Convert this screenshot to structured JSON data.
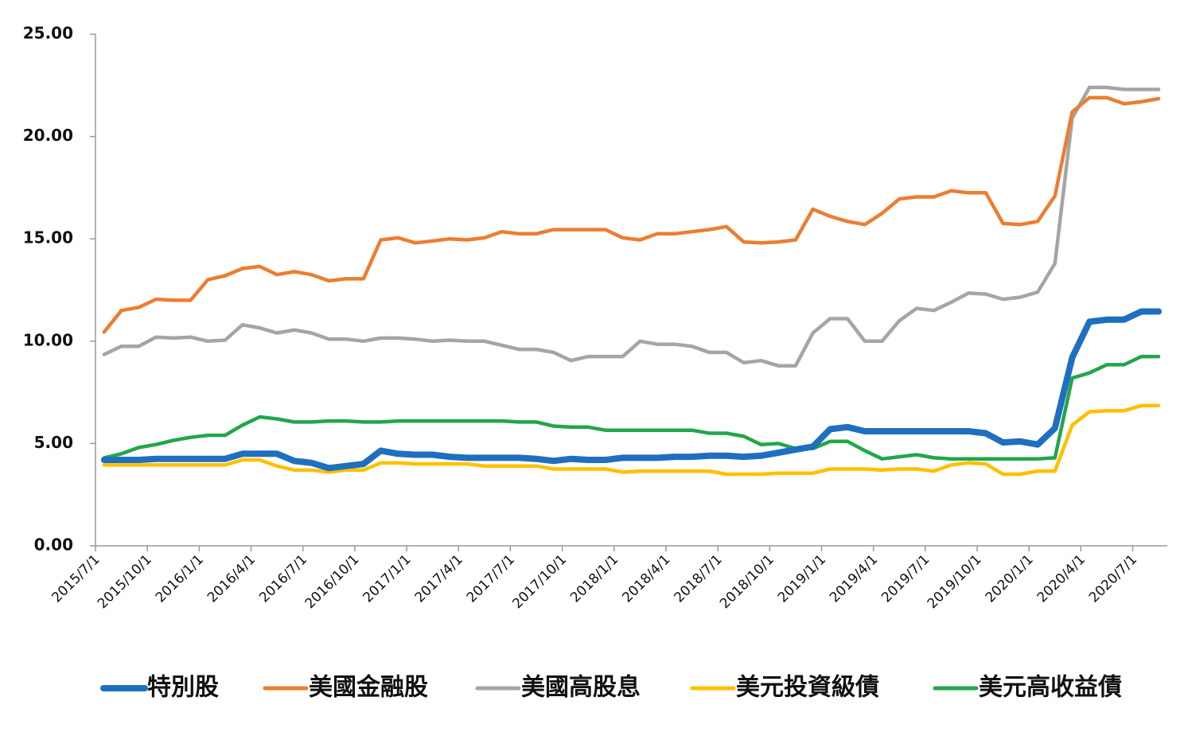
{
  "chart_data": {
    "type": "line",
    "categories": [
      "2015/7/1",
      null,
      null,
      "2015/10/1",
      null,
      null,
      "2016/1/1",
      null,
      null,
      "2016/4/1",
      null,
      null,
      "2016/7/1",
      null,
      null,
      "2016/10/1",
      null,
      null,
      "2017/1/1",
      null,
      null,
      "2017/4/1",
      null,
      null,
      "2017/7/1",
      null,
      null,
      "2017/10/1",
      null,
      null,
      "2018/1/1",
      null,
      null,
      "2018/4/1",
      null,
      null,
      "2018/7/1",
      null,
      null,
      "2018/10/1",
      null,
      null,
      "2019/1/1",
      null,
      null,
      "2019/4/1",
      null,
      null,
      "2019/7/1",
      null,
      null,
      "2019/10/1",
      null,
      null,
      "2020/1/1",
      null,
      null,
      "2020/4/1",
      null,
      null,
      "2020/7/1",
      null
    ],
    "series": [
      {
        "name": "特別股",
        "color": "#1f6fc0",
        "values": [
          4.2,
          4.2,
          4.2,
          4.25,
          4.25,
          4.25,
          4.25,
          4.25,
          4.5,
          4.5,
          4.5,
          4.15,
          4.05,
          3.8,
          3.9,
          4.0,
          4.65,
          4.5,
          4.45,
          4.45,
          4.35,
          4.3,
          4.3,
          4.3,
          4.3,
          4.25,
          4.15,
          4.25,
          4.2,
          4.2,
          4.3,
          4.3,
          4.3,
          4.35,
          4.35,
          4.4,
          4.4,
          4.35,
          4.4,
          4.55,
          4.7,
          4.85,
          5.7,
          5.8,
          5.6,
          5.6,
          5.6,
          5.6,
          5.6,
          5.6,
          5.6,
          5.5,
          5.05,
          5.1,
          4.95,
          5.75,
          9.2,
          10.95,
          11.05,
          11.05,
          11.45,
          11.45
        ]
      },
      {
        "name": "美國金融股",
        "color": "#ed7d31",
        "values": [
          10.45,
          11.5,
          11.65,
          12.05,
          12.0,
          12.0,
          13.0,
          13.2,
          13.55,
          13.65,
          13.25,
          13.4,
          13.25,
          12.95,
          13.05,
          13.05,
          14.95,
          15.05,
          14.8,
          14.9,
          15.0,
          14.95,
          15.05,
          15.35,
          15.25,
          15.25,
          15.45,
          15.45,
          15.45,
          15.45,
          15.05,
          14.95,
          15.25,
          15.25,
          15.35,
          15.45,
          15.6,
          14.85,
          14.8,
          14.85,
          14.95,
          16.45,
          16.1,
          15.85,
          15.7,
          16.25,
          16.95,
          17.05,
          17.05,
          17.35,
          17.25,
          17.25,
          15.75,
          15.7,
          15.85,
          17.1,
          21.2,
          21.9,
          21.9,
          21.6,
          21.7,
          21.85
        ]
      },
      {
        "name": "美國高股息",
        "color": "#a5a5a5",
        "values": [
          9.35,
          9.75,
          9.75,
          10.2,
          10.15,
          10.2,
          10.0,
          10.05,
          10.8,
          10.65,
          10.4,
          10.55,
          10.4,
          10.1,
          10.1,
          10.0,
          10.15,
          10.15,
          10.1,
          10.0,
          10.05,
          10.0,
          10.0,
          9.8,
          9.6,
          9.6,
          9.45,
          9.05,
          9.25,
          9.25,
          9.25,
          10.0,
          9.85,
          9.85,
          9.75,
          9.45,
          9.45,
          8.95,
          9.05,
          8.8,
          8.8,
          10.4,
          11.1,
          11.1,
          10.0,
          10.0,
          11.0,
          11.6,
          11.5,
          11.9,
          12.35,
          12.3,
          12.05,
          12.15,
          12.4,
          13.8,
          20.9,
          22.4,
          22.4,
          22.3,
          22.3,
          22.3
        ]
      },
      {
        "name": "美元投資級債",
        "color": "#ffc000",
        "values": [
          3.95,
          3.95,
          3.95,
          3.95,
          3.95,
          3.95,
          3.95,
          3.95,
          4.2,
          4.2,
          3.9,
          3.7,
          3.7,
          3.6,
          3.7,
          3.7,
          4.05,
          4.05,
          4.0,
          4.0,
          4.0,
          4.0,
          3.9,
          3.9,
          3.9,
          3.9,
          3.75,
          3.75,
          3.75,
          3.75,
          3.6,
          3.65,
          3.65,
          3.65,
          3.65,
          3.65,
          3.5,
          3.5,
          3.5,
          3.55,
          3.55,
          3.55,
          3.75,
          3.75,
          3.75,
          3.7,
          3.75,
          3.75,
          3.65,
          3.95,
          4.05,
          4.0,
          3.5,
          3.5,
          3.65,
          3.65,
          5.9,
          6.55,
          6.6,
          6.6,
          6.85,
          6.85
        ]
      },
      {
        "name": "美元高收益債",
        "color": "#22a64a",
        "values": [
          4.3,
          4.5,
          4.8,
          4.95,
          5.15,
          5.3,
          5.4,
          5.4,
          5.9,
          6.3,
          6.2,
          6.05,
          6.05,
          6.1,
          6.1,
          6.05,
          6.05,
          6.1,
          6.1,
          6.1,
          6.1,
          6.1,
          6.1,
          6.1,
          6.05,
          6.05,
          5.85,
          5.8,
          5.8,
          5.65,
          5.65,
          5.65,
          5.65,
          5.65,
          5.65,
          5.5,
          5.5,
          5.35,
          4.95,
          5.0,
          4.75,
          4.75,
          5.1,
          5.1,
          4.65,
          4.25,
          4.35,
          4.45,
          4.3,
          4.25,
          4.25,
          4.25,
          4.25,
          4.25,
          4.25,
          4.3,
          8.2,
          8.45,
          8.85,
          8.85,
          9.25,
          9.25
        ]
      }
    ],
    "ylim": [
      0,
      25
    ],
    "yticks": [
      {
        "value": 0,
        "label": "0.00"
      },
      {
        "value": 5,
        "label": "5.00"
      },
      {
        "value": 10,
        "label": "10.00"
      },
      {
        "value": 15,
        "label": "15.00"
      },
      {
        "value": 20,
        "label": "20.00"
      },
      {
        "value": 25,
        "label": "25.00"
      }
    ],
    "grid": false,
    "legend": "bottom"
  }
}
